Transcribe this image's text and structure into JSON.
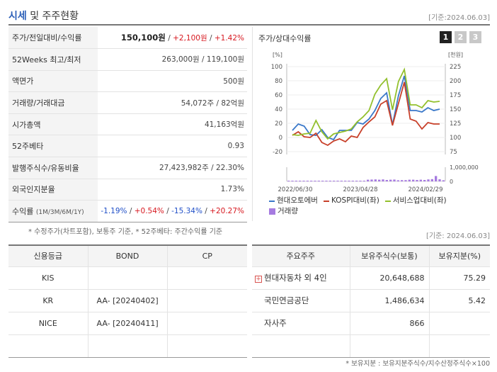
{
  "header": {
    "title_main": "시세",
    "title_rest": " 및 주주현황",
    "date": "[기준:2024.06.03]"
  },
  "info": {
    "price_label": "주가/전일대비/수익률",
    "price": "150,100원",
    "change": "+2,100원",
    "change_pct": "+1.42%",
    "w52_label": "52Weeks 최고/최저",
    "w52_value": "263,000원 / 119,100원",
    "face_label": "액면가",
    "face_value": "500원",
    "volume_label": "거래량/거래대금",
    "volume_value": "54,072주 / 82억원",
    "mcap_label": "시가총액",
    "mcap_value": "41,163억원",
    "beta_label": "52주베타",
    "beta_value": "0.93",
    "shares_label": "발행주식수/유동비율",
    "shares_value": "27,423,982주 / 22.30%",
    "foreign_label": "외국인지분율",
    "foreign_value": "1.73%",
    "return_label": "수익률",
    "return_sub": "(1M/3M/6M/1Y)",
    "return_1m": "-1.19%",
    "return_3m": "+0.54%",
    "return_6m": "-15.34%",
    "return_1y": "+20.27%",
    "sep": " / "
  },
  "footnote1": "* 수정주가(차트포함), 보통주 기준, * 52주베타: 주간수익률 기준",
  "date2": "[기준: 2024.06.03]",
  "chart_panel": {
    "title": "주가/상대수익률",
    "tabs": [
      "1",
      "2",
      "3"
    ],
    "left_unit": "[%]",
    "right_unit": "[천원]"
  },
  "chart_data": {
    "type": "line",
    "x_labels": [
      "2022/06/30",
      "2023/04/28",
      "2024/02/29"
    ],
    "left_ticks": [
      100,
      80,
      60,
      40,
      20,
      0,
      -20
    ],
    "right_ticks": [
      225,
      200,
      175,
      150,
      125,
      100,
      75
    ],
    "ylim_left": [
      -20,
      100
    ],
    "ylim_right": [
      75,
      225
    ],
    "volume_ticks": [
      "1,000,000",
      "0"
    ],
    "series": [
      {
        "name": "현대오토에버",
        "color": "#3a78c9",
        "axis": "left",
        "values": [
          10,
          19,
          16,
          4,
          3,
          11,
          0,
          -3,
          10,
          10,
          10,
          21,
          19,
          26,
          38,
          55,
          63,
          18,
          59,
          87,
          38,
          38,
          36,
          42,
          38,
          40
        ]
      },
      {
        "name": "KOSPI대비(좌)",
        "color": "#c8402a",
        "axis": "left",
        "values": [
          3,
          8,
          1,
          0,
          6,
          -7,
          -11,
          -5,
          -2,
          -6,
          2,
          0,
          14,
          22,
          29,
          47,
          52,
          17,
          48,
          78,
          26,
          23,
          12,
          21,
          19,
          19
        ]
      },
      {
        "name": "서비스업대비(좌)",
        "color": "#93c02d",
        "axis": "left",
        "values": [
          4,
          3,
          5,
          6,
          24,
          8,
          -2,
          5,
          7,
          9,
          12,
          22,
          29,
          38,
          61,
          74,
          83,
          39,
          79,
          96,
          46,
          46,
          42,
          52,
          50,
          51
        ]
      }
    ],
    "volume": {
      "name": "거래량",
      "color": "#a67be0",
      "values": [
        0.03,
        0.03,
        0.03,
        0.02,
        0.03,
        0.03,
        0.03,
        0.04,
        0.05,
        0.05,
        0.03,
        0.04,
        0.04,
        0.04,
        0.05,
        0.05,
        0.04,
        0.05,
        0.04,
        0.04,
        0.03,
        0.12,
        0.13,
        0.14,
        0.12,
        0.14,
        0.1,
        0.12,
        0.13,
        0.08,
        0.09,
        0.09,
        0.12,
        0.12,
        0.1,
        0.12,
        0.1,
        0.14,
        0.16,
        0.38,
        0.15,
        0.08
      ]
    }
  },
  "credit": {
    "headers": [
      "신용등급",
      "BOND",
      "CP"
    ],
    "rows": [
      {
        "agency": "KIS",
        "bond": "",
        "cp": ""
      },
      {
        "agency": "KR",
        "bond": "AA-  [20240402]",
        "cp": ""
      },
      {
        "agency": "NICE",
        "bond": "AA-  [20240411]",
        "cp": ""
      },
      {
        "agency": "",
        "bond": "",
        "cp": ""
      }
    ]
  },
  "holders": {
    "headers": [
      "주요주주",
      "보유주식수(보통)",
      "보유지분(%)"
    ],
    "rows": [
      {
        "name": "현대자동차 외 4인",
        "shares": "20,648,688",
        "pct": "75.29",
        "expand": "+"
      },
      {
        "name": "국민연금공단",
        "shares": "1,486,634",
        "pct": "5.42",
        "expand": ""
      },
      {
        "name": "자사주",
        "shares": "866",
        "pct": "",
        "expand": ""
      },
      {
        "name": "",
        "shares": "",
        "pct": "",
        "expand": ""
      }
    ]
  },
  "footnote2": "* 보유지분 : 보유지분주식수/지수산정주식수×100"
}
